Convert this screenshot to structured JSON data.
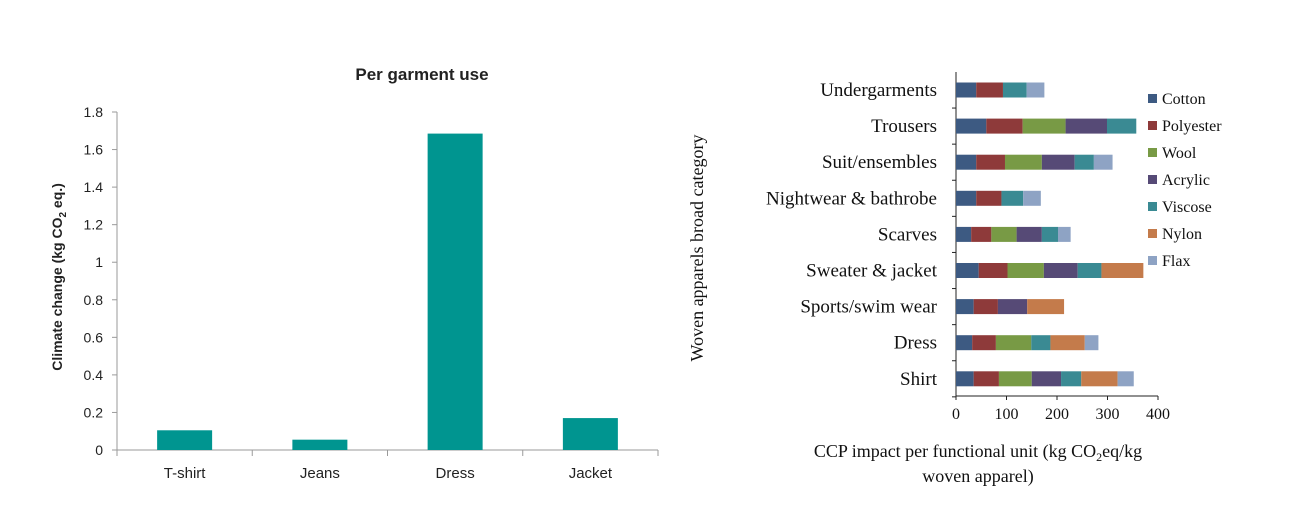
{
  "chart_data": [
    {
      "type": "bar",
      "title": "Per garment use",
      "xlabel": "",
      "ylabel": "Climate change (kg CO2 eq.)",
      "categories": [
        "T-shirt",
        "Jeans",
        "Dress",
        "Jacket"
      ],
      "values": [
        0.105,
        0.055,
        1.685,
        0.17
      ],
      "ylim": [
        0,
        1.8
      ],
      "yticks": [
        "0",
        "0.2",
        "0.4",
        "0.6",
        "0.8",
        "1",
        "1.2",
        "1.4",
        "1.6",
        "1.8"
      ],
      "color": "#009590",
      "grid": false
    },
    {
      "type": "bar",
      "orientation": "horizontal",
      "stacked": true,
      "title": "",
      "xlabel": "CCP impact per functional unit (kg CO2eq/kg woven apparel)",
      "ylabel": "Woven apparels broad category",
      "categories": [
        "Undergarments",
        "Trousers",
        "Suit/ensembles",
        "Nightwear & bathrobe",
        "Scarves",
        "Sweater & jacket",
        "Sports/swim wear",
        "Dress",
        "Shirt"
      ],
      "xlim": [
        0,
        400
      ],
      "xticks": [
        "0",
        "100",
        "200",
        "300",
        "400"
      ],
      "legend_position": "right",
      "grid": false,
      "series": [
        {
          "name": "Cotton",
          "color": "#3d5a82",
          "values": [
            40,
            60,
            40,
            40,
            30,
            45,
            35,
            32,
            35
          ]
        },
        {
          "name": "Polyester",
          "color": "#8e3a3a",
          "values": [
            53,
            72,
            57,
            50,
            40,
            57,
            48,
            47,
            50
          ]
        },
        {
          "name": "Wool",
          "color": "#789a45",
          "values": [
            0,
            85,
            73,
            0,
            50,
            72,
            0,
            70,
            65
          ]
        },
        {
          "name": "Acrylic",
          "color": "#564a76",
          "values": [
            0,
            82,
            65,
            0,
            50,
            67,
            58,
            0,
            58
          ]
        },
        {
          "name": "Viscose",
          "color": "#3a8a93",
          "values": [
            47,
            58,
            38,
            43,
            32,
            47,
            0,
            38,
            40
          ]
        },
        {
          "name": "Nylon",
          "color": "#c47b4b",
          "values": [
            0,
            0,
            0,
            0,
            0,
            83,
            73,
            68,
            72
          ]
        },
        {
          "name": "Flax",
          "color": "#8ea3c4",
          "values": [
            35,
            0,
            37,
            35,
            25,
            0,
            0,
            27,
            32
          ]
        }
      ]
    }
  ]
}
